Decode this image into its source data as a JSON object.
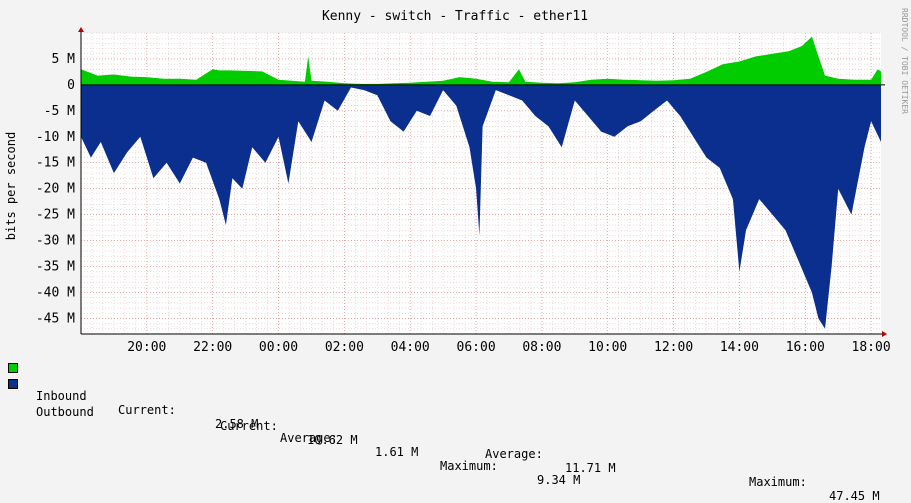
{
  "title": "Kenny - switch - Traffic - ether11",
  "watermark": "RRDTOOL / TOBI OETIKER",
  "colors": {
    "background": "#f3f3f3",
    "plot_background": "#ffffff",
    "inbound": "#00cc00",
    "outbound": "#0b2f8f",
    "grid_minor": "#e0b8b8",
    "grid_major": "#e08080",
    "zero_line": "#000000"
  },
  "chart_data": {
    "type": "area",
    "title": "Kenny - switch - Traffic - ether11",
    "ylabel": "bits per second",
    "xlabel": "",
    "ylim": [
      -48,
      10
    ],
    "xlim_hours": [
      18.0,
      42.3
    ],
    "x_ticks": [
      "20:00",
      "22:00",
      "00:00",
      "02:00",
      "04:00",
      "06:00",
      "08:00",
      "10:00",
      "12:00",
      "14:00",
      "16:00",
      "18:00"
    ],
    "x_tick_hours": [
      20,
      22,
      24,
      26,
      28,
      30,
      32,
      34,
      36,
      38,
      40,
      42
    ],
    "y_ticks": [
      "5 M",
      "0",
      "-5 M",
      "-10 M",
      "-15 M",
      "-20 M",
      "-25 M",
      "-30 M",
      "-35 M",
      "-40 M",
      "-45 M"
    ],
    "y_tick_values": [
      5,
      0,
      -5,
      -10,
      -15,
      -20,
      -25,
      -30,
      -35,
      -40,
      -45
    ],
    "grid": true,
    "series": [
      {
        "name": "Inbound",
        "unit": "Mbps",
        "x_hours": [
          18.0,
          18.5,
          19.0,
          19.5,
          20.0,
          20.5,
          21.0,
          21.5,
          22.0,
          22.2,
          22.5,
          23.0,
          23.5,
          24.0,
          24.4,
          24.8,
          24.9,
          25.0,
          25.5,
          26.0,
          26.5,
          27.0,
          27.5,
          28.0,
          28.5,
          29.0,
          29.5,
          30.0,
          30.5,
          31.0,
          31.3,
          31.5,
          32.0,
          32.5,
          33.0,
          33.5,
          34.0,
          34.5,
          35.0,
          35.5,
          36.0,
          36.5,
          37.0,
          37.5,
          38.0,
          38.5,
          39.0,
          39.5,
          39.9,
          40.2,
          40.4,
          40.6,
          41.0,
          41.5,
          42.0,
          42.2,
          42.3
        ],
        "values": [
          3.0,
          1.8,
          2.0,
          1.6,
          1.5,
          1.2,
          1.2,
          1.0,
          3.0,
          2.8,
          2.8,
          2.7,
          2.6,
          1.0,
          0.8,
          0.6,
          5.5,
          0.8,
          0.6,
          0.3,
          0.2,
          0.2,
          0.3,
          0.4,
          0.6,
          0.8,
          1.5,
          1.2,
          0.6,
          0.5,
          3.0,
          0.6,
          0.4,
          0.3,
          0.5,
          1.0,
          1.2,
          1.0,
          0.9,
          0.8,
          0.9,
          1.2,
          2.5,
          4.0,
          4.5,
          5.5,
          6.0,
          6.5,
          7.5,
          9.3,
          5.5,
          1.8,
          1.2,
          1.0,
          1.0,
          3.0,
          2.6
        ],
        "current": "2.58 M",
        "average": "1.61 M",
        "maximum": "9.34 M"
      },
      {
        "name": "Outbound",
        "unit": "Mbps",
        "x_hours": [
          18.0,
          18.3,
          18.6,
          19.0,
          19.4,
          19.8,
          20.2,
          20.6,
          21.0,
          21.4,
          21.8,
          22.2,
          22.4,
          22.6,
          22.9,
          23.2,
          23.6,
          24.0,
          24.3,
          24.6,
          25.0,
          25.4,
          25.8,
          26.2,
          26.6,
          27.0,
          27.4,
          27.8,
          28.2,
          28.6,
          29.0,
          29.4,
          29.8,
          30.0,
          30.1,
          30.2,
          30.6,
          31.0,
          31.4,
          31.8,
          32.2,
          32.6,
          33.0,
          33.4,
          33.8,
          34.2,
          34.6,
          35.0,
          35.4,
          35.8,
          36.2,
          36.6,
          37.0,
          37.4,
          37.8,
          38.0,
          38.2,
          38.6,
          39.0,
          39.4,
          39.8,
          40.2,
          40.4,
          40.6,
          40.8,
          41.0,
          41.4,
          41.8,
          42.0,
          42.3
        ],
        "values": [
          -10,
          -14,
          -11,
          -17,
          -13,
          -10,
          -18,
          -15,
          -19,
          -14,
          -15,
          -22,
          -27,
          -18,
          -20,
          -12,
          -15,
          -10,
          -19,
          -7,
          -11,
          -3,
          -5,
          -0.5,
          -1,
          -2,
          -7,
          -9,
          -5,
          -6,
          -1,
          -4,
          -12,
          -20,
          -29,
          -8,
          -1,
          -2,
          -3,
          -6,
          -8,
          -12,
          -3,
          -6,
          -9,
          -10,
          -8,
          -7,
          -5,
          -3,
          -6,
          -10,
          -14,
          -16,
          -22,
          -36,
          -28,
          -22,
          -25,
          -28,
          -34,
          -40,
          -45,
          -47,
          -35,
          -20,
          -25,
          -12,
          -7,
          -11
        ],
        "current": "10.62 M",
        "average": "11.71 M",
        "maximum": "47.45 M"
      }
    ]
  },
  "legend": {
    "current_label": "Current:",
    "average_label": "Average:",
    "maximum_label": "Maximum:"
  }
}
